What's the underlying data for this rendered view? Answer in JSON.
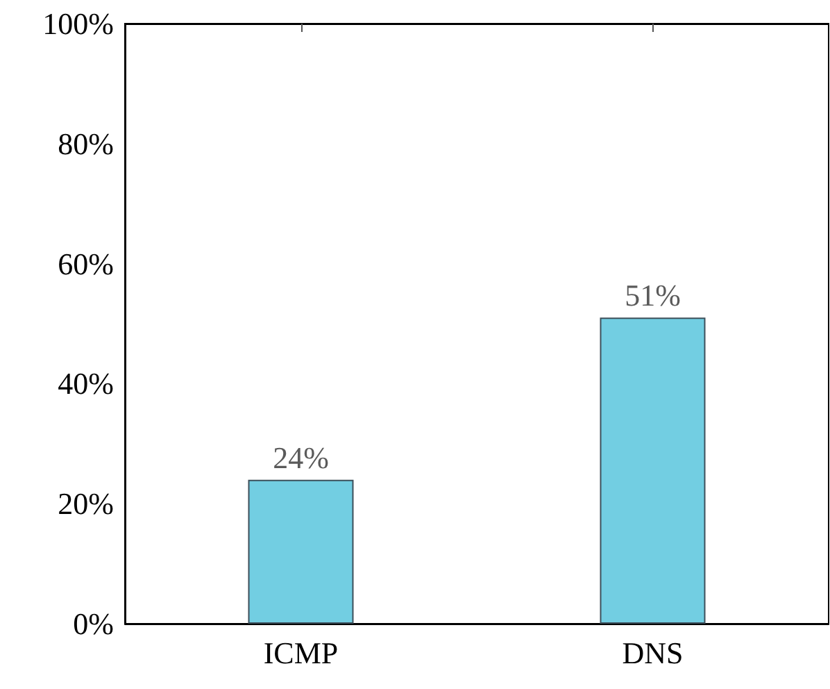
{
  "chart_data": {
    "type": "bar",
    "categories": [
      "ICMP",
      "DNS"
    ],
    "values": [
      24,
      51
    ],
    "color": "#72cee2",
    "value_labels": [
      "24%",
      "51%"
    ],
    "ylim": [
      0,
      100
    ],
    "yticks": [
      {
        "value": 0,
        "label": "0%"
      },
      {
        "value": 20,
        "label": "20%"
      },
      {
        "value": 40,
        "label": "40%"
      },
      {
        "value": 60,
        "label": "60%"
      },
      {
        "value": 80,
        "label": "80%"
      },
      {
        "value": 100,
        "label": "100%"
      }
    ],
    "tick_labels": true
  }
}
